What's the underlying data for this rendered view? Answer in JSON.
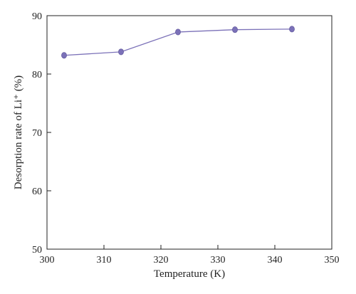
{
  "chart_data": {
    "type": "line",
    "xlabel": "Temperature (K)",
    "ylabel": "Desorption rate of Li⁺ (%)",
    "xlim": [
      300,
      350
    ],
    "ylim": [
      50,
      90
    ],
    "xticks": [
      300,
      310,
      320,
      330,
      340,
      350
    ],
    "yticks": [
      50,
      60,
      70,
      80,
      90
    ],
    "grid": false,
    "legend": "none",
    "series": [
      {
        "x": [
          303,
          313,
          323,
          333,
          343
        ],
        "y": [
          83.2,
          83.8,
          87.2,
          87.6,
          87.7
        ],
        "color": "#7b71b8"
      }
    ]
  }
}
